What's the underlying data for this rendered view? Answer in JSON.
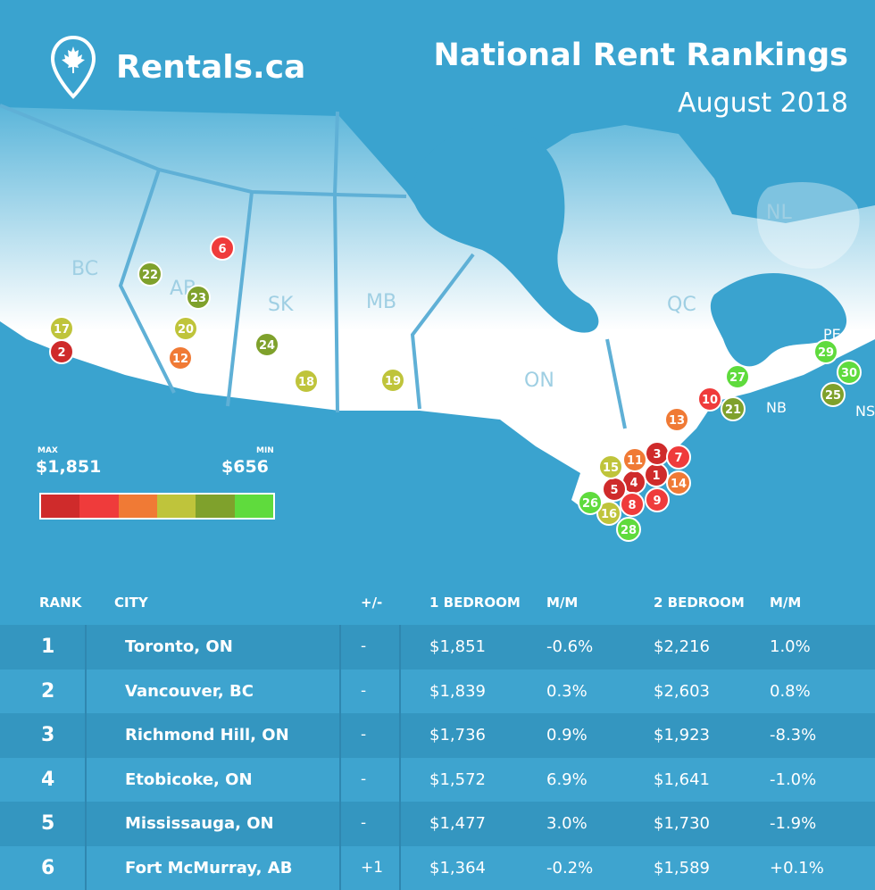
{
  "brand": {
    "name": "Rentals.ca"
  },
  "header": {
    "title": "National Rent Rankings",
    "subtitle": "August 2018"
  },
  "colors": {
    "background": "#3aa3cf",
    "land": "#ffffff",
    "scale": [
      "#cf2b2b",
      "#ef3b3b",
      "#f07a35",
      "#bfc43b",
      "#7fa12c",
      "#5fdb3d"
    ]
  },
  "provinces": [
    "BC",
    "AB",
    "SK",
    "MB",
    "ON",
    "QC",
    "NL",
    "PE",
    "NB",
    "NS"
  ],
  "markers": [
    {
      "rank": "1",
      "color": "#cf2b2b"
    },
    {
      "rank": "2",
      "color": "#cf2b2b"
    },
    {
      "rank": "3",
      "color": "#cf2b2b"
    },
    {
      "rank": "4",
      "color": "#cf2b2b"
    },
    {
      "rank": "5",
      "color": "#cf2b2b"
    },
    {
      "rank": "6",
      "color": "#ef3b3b"
    },
    {
      "rank": "7",
      "color": "#ef3b3b"
    },
    {
      "rank": "8",
      "color": "#ef3b3b"
    },
    {
      "rank": "9",
      "color": "#ef3b3b"
    },
    {
      "rank": "10",
      "color": "#ef3b3b"
    },
    {
      "rank": "11",
      "color": "#f07a35"
    },
    {
      "rank": "12",
      "color": "#f07a35"
    },
    {
      "rank": "13",
      "color": "#f07a35"
    },
    {
      "rank": "14",
      "color": "#f07a35"
    },
    {
      "rank": "15",
      "color": "#bfc43b"
    },
    {
      "rank": "16",
      "color": "#bfc43b"
    },
    {
      "rank": "17",
      "color": "#bfc43b"
    },
    {
      "rank": "18",
      "color": "#bfc43b"
    },
    {
      "rank": "19",
      "color": "#bfc43b"
    },
    {
      "rank": "20",
      "color": "#bfc43b"
    },
    {
      "rank": "21",
      "color": "#7fa12c"
    },
    {
      "rank": "22",
      "color": "#7fa12c"
    },
    {
      "rank": "23",
      "color": "#7fa12c"
    },
    {
      "rank": "24",
      "color": "#7fa12c"
    },
    {
      "rank": "25",
      "color": "#7fa12c"
    },
    {
      "rank": "26",
      "color": "#5fdb3d"
    },
    {
      "rank": "27",
      "color": "#5fdb3d"
    },
    {
      "rank": "28",
      "color": "#5fdb3d"
    },
    {
      "rank": "29",
      "color": "#5fdb3d"
    },
    {
      "rank": "30",
      "color": "#5fdb3d"
    }
  ],
  "legend": {
    "max_label": "MAX",
    "max_value": "$1,851",
    "min_label": "MIN",
    "min_value": "$656"
  },
  "table": {
    "headers": [
      "RANK",
      "CITY",
      "+/-",
      "1 BEDROOM",
      "M/M",
      "2 BEDROOM",
      "M/M"
    ],
    "rows": [
      {
        "rank": "1",
        "city": "Toronto, ON",
        "change": "-",
        "br1": "$1,851",
        "mm1": "-0.6%",
        "br2": "$2,216",
        "mm2": "1.0%"
      },
      {
        "rank": "2",
        "city": "Vancouver, BC",
        "change": "-",
        "br1": "$1,839",
        "mm1": "0.3%",
        "br2": "$2,603",
        "mm2": "0.8%"
      },
      {
        "rank": "3",
        "city": "Richmond Hill, ON",
        "change": "-",
        "br1": "$1,736",
        "mm1": "0.9%",
        "br2": "$1,923",
        "mm2": "-8.3%"
      },
      {
        "rank": "4",
        "city": "Etobicoke, ON",
        "change": "-",
        "br1": "$1,572",
        "mm1": "6.9%",
        "br2": "$1,641",
        "mm2": "-1.0%"
      },
      {
        "rank": "5",
        "city": "Mississauga, ON",
        "change": "-",
        "br1": "$1,477",
        "mm1": "3.0%",
        "br2": "$1,730",
        "mm2": "-1.9%"
      },
      {
        "rank": "6",
        "city": "Fort McMurray, AB",
        "change": "+1",
        "br1": "$1,364",
        "mm1": "-0.2%",
        "br2": "$1,589",
        "mm2": "+0.1%"
      }
    ]
  }
}
